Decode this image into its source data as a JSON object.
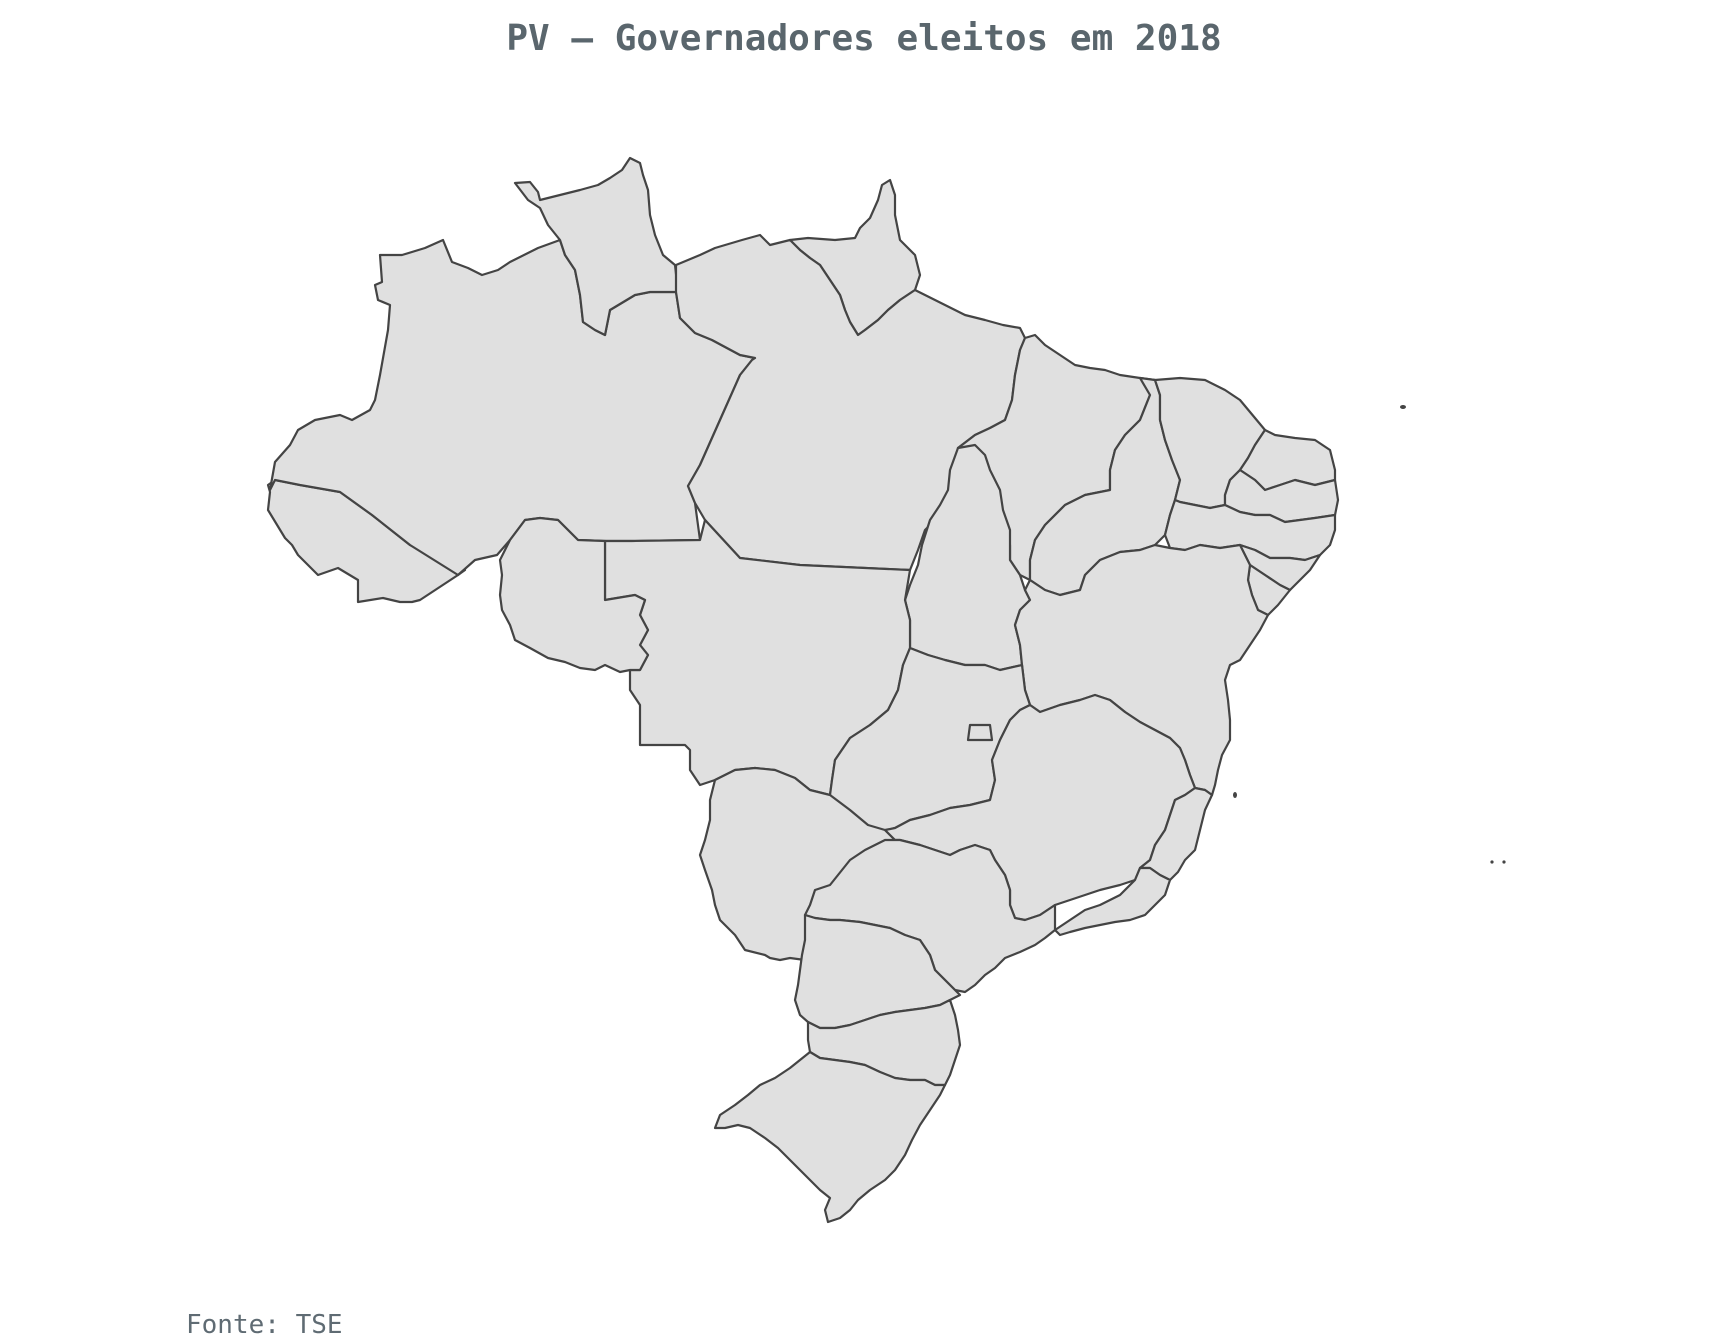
{
  "title": "PV – Governadores eleitos em 2018",
  "source": "Fonte: TSE",
  "map": {
    "country": "Brasil",
    "fill_color": "#e0e0e0",
    "border_color": "#444444",
    "states": [
      "AC",
      "AL",
      "AP",
      "AM",
      "BA",
      "CE",
      "DF",
      "ES",
      "GO",
      "MA",
      "MT",
      "MS",
      "MG",
      "PA",
      "PB",
      "PR",
      "PE",
      "PI",
      "RJ",
      "RN",
      "RS",
      "RO",
      "RR",
      "SC",
      "SP",
      "SE",
      "TO"
    ]
  }
}
